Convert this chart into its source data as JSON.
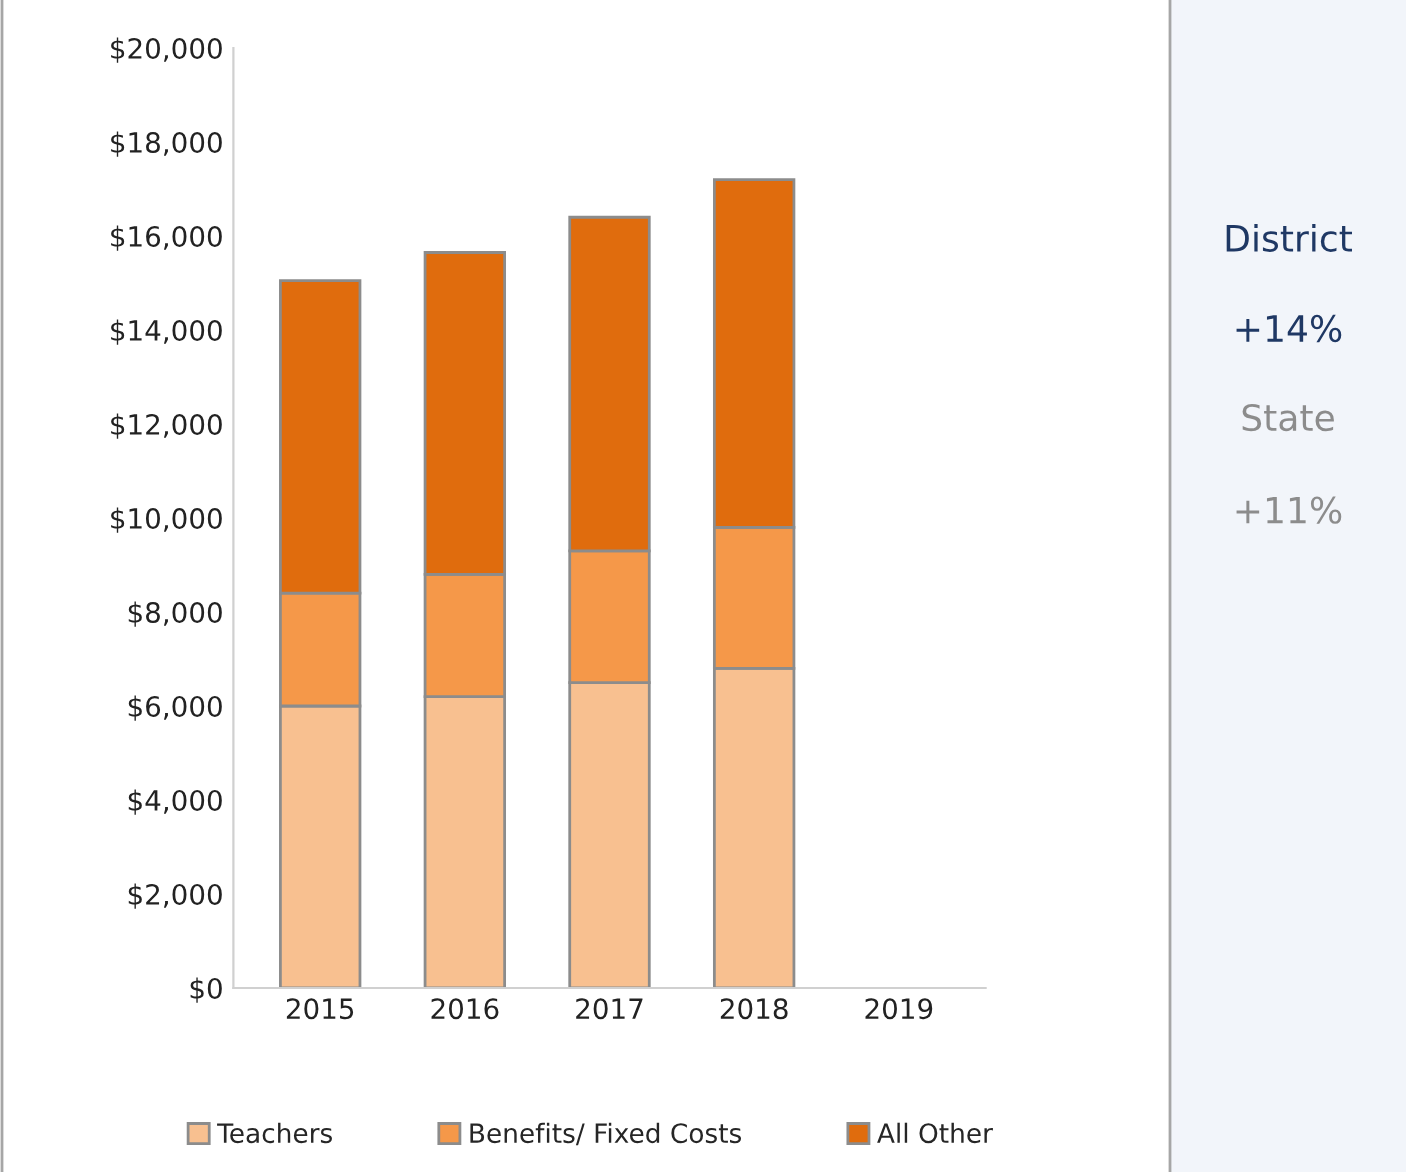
{
  "chart_data": {
    "type": "bar",
    "stacked": true,
    "categories": [
      "2015",
      "2016",
      "2017",
      "2018",
      "2019"
    ],
    "series": [
      {
        "name": "Teachers",
        "color": "#f8c090",
        "values": [
          6000,
          6200,
          6500,
          6800,
          null
        ]
      },
      {
        "name": "Benefits/ Fixed Costs",
        "color": "#f59849",
        "values": [
          2400,
          2600,
          2800,
          3000,
          null
        ]
      },
      {
        "name": "All Other",
        "color": "#e06c0d",
        "values": [
          6650,
          6850,
          7100,
          7400,
          null
        ]
      }
    ],
    "ylim": [
      0,
      20000
    ],
    "yticks": [
      {
        "value": 0,
        "label": "$0"
      },
      {
        "value": 2000,
        "label": "$2,000"
      },
      {
        "value": 4000,
        "label": "$4,000"
      },
      {
        "value": 6000,
        "label": "$6,000"
      },
      {
        "value": 8000,
        "label": "$8,000"
      },
      {
        "value": 10000,
        "label": "$10,000"
      },
      {
        "value": 12000,
        "label": "$12,000"
      },
      {
        "value": 14000,
        "label": "$14,000"
      },
      {
        "value": 16000,
        "label": "$16,000"
      },
      {
        "value": 18000,
        "label": "$18,000"
      },
      {
        "value": 20000,
        "label": "$20,000"
      }
    ],
    "grid": false,
    "legend": "bottom",
    "annotations": [
      "District",
      "+14%",
      "State",
      "+11%"
    ]
  }
}
